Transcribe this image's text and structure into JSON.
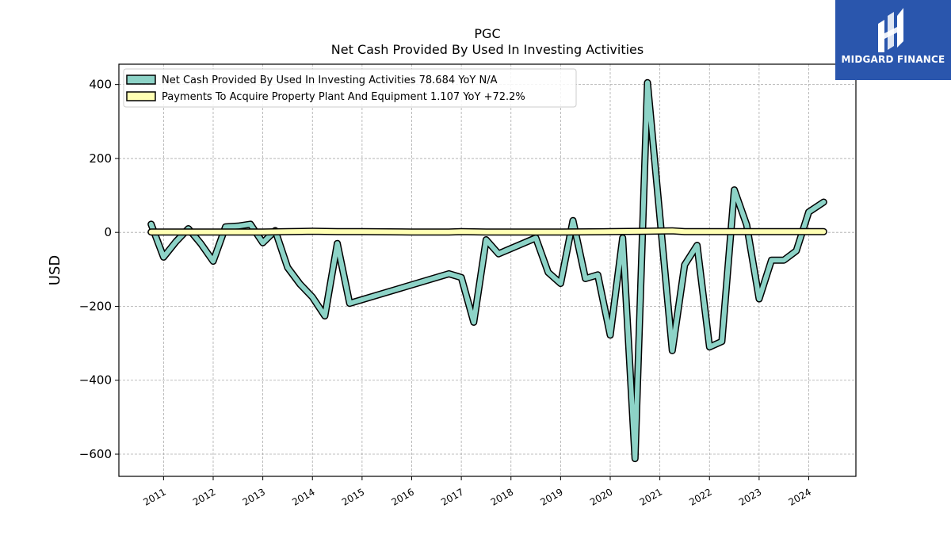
{
  "chart_data": {
    "type": "line",
    "title": "PGC",
    "subtitle": "Net Cash Provided By Used In Investing Activities",
    "ylabel": "USD",
    "xlabel": "",
    "ylim": [
      -660,
      455
    ],
    "xlim": [
      2010.1,
      2024.95
    ],
    "yticks": [
      400,
      200,
      0,
      -200,
      -400,
      -600
    ],
    "ytick_labels": [
      "400",
      "200",
      "0",
      "−200",
      "−400",
      "−600"
    ],
    "xticks": [
      2011,
      2012,
      2013,
      2014,
      2015,
      2016,
      2017,
      2018,
      2019,
      2020,
      2021,
      2022,
      2023,
      2024
    ],
    "xtick_labels": [
      "2011",
      "2012",
      "2013",
      "2014",
      "2015",
      "2016",
      "2017",
      "2018",
      "2019",
      "2020",
      "2021",
      "2022",
      "2023",
      "2024"
    ],
    "grid": true,
    "legend_position": "top-left",
    "series": [
      {
        "name": "Net Cash Provided By Used In Investing Activities",
        "legend_label": "Net Cash Provided By Used In Investing Activities  78.684 YoY N/A",
        "color": "#8dd3c7",
        "points": [
          [
            2010.75,
            22
          ],
          [
            2011.0,
            -67
          ],
          [
            2011.25,
            -25
          ],
          [
            2011.5,
            10
          ],
          [
            2011.75,
            -30
          ],
          [
            2012.0,
            -78
          ],
          [
            2012.25,
            15
          ],
          [
            2012.5,
            17
          ],
          [
            2012.75,
            22
          ],
          [
            2013.0,
            -28
          ],
          [
            2013.25,
            5
          ],
          [
            2013.5,
            -95
          ],
          [
            2013.75,
            -140
          ],
          [
            2014.0,
            -175
          ],
          [
            2014.25,
            -226
          ],
          [
            2014.5,
            -30
          ],
          [
            2014.75,
            -192
          ],
          [
            2016.75,
            -112
          ],
          [
            2017.0,
            -122
          ],
          [
            2017.25,
            -243
          ],
          [
            2017.5,
            -20
          ],
          [
            2017.75,
            -58
          ],
          [
            2018.5,
            -15
          ],
          [
            2018.75,
            -108
          ],
          [
            2019.0,
            -138
          ],
          [
            2019.25,
            32
          ],
          [
            2019.5,
            -125
          ],
          [
            2019.75,
            -115
          ],
          [
            2020.0,
            -278
          ],
          [
            2020.25,
            -15
          ],
          [
            2020.5,
            -612
          ],
          [
            2020.75,
            405
          ],
          [
            2021.25,
            -320
          ],
          [
            2021.5,
            -88
          ],
          [
            2021.75,
            -35
          ],
          [
            2022.0,
            -310
          ],
          [
            2022.25,
            -295
          ],
          [
            2022.5,
            115
          ],
          [
            2022.75,
            20
          ],
          [
            2023.0,
            -180
          ],
          [
            2023.25,
            -75
          ],
          [
            2023.5,
            -75
          ],
          [
            2023.75,
            -50
          ],
          [
            2024.0,
            55
          ],
          [
            2024.3,
            82
          ]
        ]
      },
      {
        "name": "Payments To Acquire Property Plant And Equipment",
        "legend_label": "Payments To Acquire Property Plant And Equipment  1.107 YoY +72.2%",
        "color": "#ffffb3",
        "points": [
          [
            2010.75,
            1
          ],
          [
            2011.0,
            1
          ],
          [
            2012.0,
            1
          ],
          [
            2013.0,
            1
          ],
          [
            2013.5,
            2
          ],
          [
            2014.0,
            3
          ],
          [
            2014.5,
            2
          ],
          [
            2015.0,
            2
          ],
          [
            2016.0,
            1
          ],
          [
            2016.75,
            1
          ],
          [
            2017.0,
            2
          ],
          [
            2017.5,
            1
          ],
          [
            2018.0,
            1
          ],
          [
            2019.0,
            1
          ],
          [
            2020.0,
            2
          ],
          [
            2020.75,
            3
          ],
          [
            2021.25,
            4
          ],
          [
            2021.5,
            2
          ],
          [
            2022.0,
            2
          ],
          [
            2023.0,
            2
          ],
          [
            2024.0,
            2
          ],
          [
            2024.3,
            2
          ]
        ]
      }
    ]
  },
  "logo": {
    "text": "MIDGARD FINANCE"
  }
}
